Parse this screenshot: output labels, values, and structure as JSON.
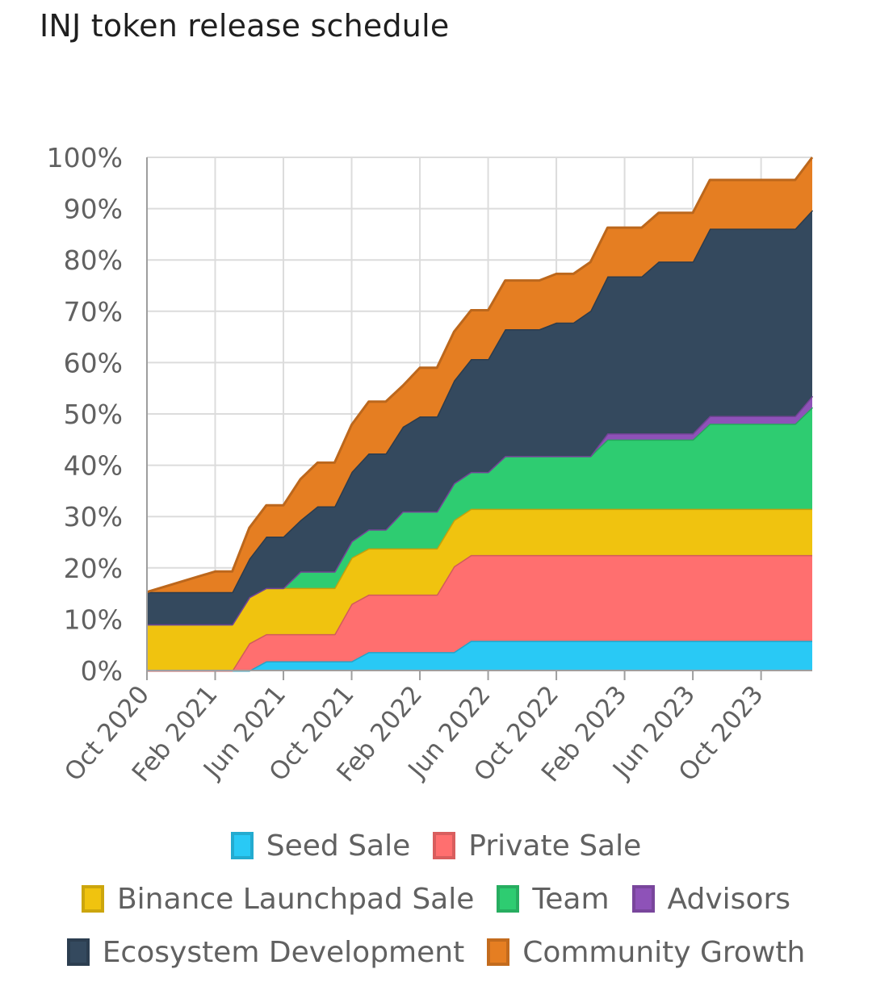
{
  "title": "INJ token release schedule",
  "chart_data": {
    "type": "area",
    "stacked": true,
    "x": [
      "2020-10",
      "2020-11",
      "2020-12",
      "2021-01",
      "2021-02",
      "2021-03",
      "2021-04",
      "2021-05",
      "2021-06",
      "2021-07",
      "2021-08",
      "2021-09",
      "2021-10",
      "2021-11",
      "2021-12",
      "2022-01",
      "2022-02",
      "2022-03",
      "2022-04",
      "2022-05",
      "2022-06",
      "2022-07",
      "2022-08",
      "2022-09",
      "2022-10",
      "2022-11",
      "2022-12",
      "2023-01",
      "2023-02",
      "2023-03",
      "2023-04",
      "2023-05",
      "2023-06",
      "2023-07",
      "2023-08",
      "2023-09",
      "2023-10",
      "2023-11",
      "2023-12",
      "2024-01"
    ],
    "x_tick_labels": [
      "Oct 2020",
      "Feb 2021",
      "Jun 2021",
      "Oct 2021",
      "Feb 2022",
      "Jun 2022",
      "Oct 2022",
      "Feb 2023",
      "Jun 2023",
      "Oct 2023"
    ],
    "y_tick_labels": [
      "0%",
      "10%",
      "20%",
      "30%",
      "40%",
      "50%",
      "60%",
      "70%",
      "80%",
      "90%",
      "100%"
    ],
    "ylim": [
      0,
      100
    ],
    "grid": true,
    "legend_position": "bottom",
    "series": [
      {
        "name": "Seed Sale",
        "color": "#29c9f5",
        "values": [
          0,
          0,
          0,
          0,
          0,
          0,
          0,
          1.8,
          1.8,
          1.8,
          1.8,
          1.8,
          1.8,
          3.6,
          3.6,
          3.6,
          3.6,
          3.6,
          3.6,
          5.8,
          5.8,
          5.8,
          5.8,
          5.8,
          5.8,
          5.8,
          5.8,
          5.8,
          5.8,
          5.8,
          5.8,
          5.8,
          5.8,
          5.8,
          5.8,
          5.8,
          5.8,
          5.8,
          5.8,
          5.8
        ]
      },
      {
        "name": "Private Sale",
        "color": "#ff6f6f",
        "values": [
          0,
          0,
          0,
          0,
          0,
          0,
          5.3,
          5.3,
          5.3,
          5.3,
          5.3,
          5.3,
          11.2,
          11.2,
          11.2,
          11.2,
          11.2,
          11.2,
          16.7,
          16.7,
          16.7,
          16.7,
          16.7,
          16.7,
          16.7,
          16.7,
          16.7,
          16.7,
          16.7,
          16.7,
          16.7,
          16.7,
          16.7,
          16.7,
          16.7,
          16.7,
          16.7,
          16.7,
          16.7,
          16.7
        ]
      },
      {
        "name": "Binance Launchpad Sale",
        "color": "#f0c30f",
        "values": [
          9,
          9,
          9,
          9,
          9,
          9,
          9,
          9,
          9,
          9,
          9,
          9,
          9,
          9,
          9,
          9,
          9,
          9,
          9,
          9,
          9,
          9,
          9,
          9,
          9,
          9,
          9,
          9,
          9,
          9,
          9,
          9,
          9,
          9,
          9,
          9,
          9,
          9,
          9,
          9
        ]
      },
      {
        "name": "Team",
        "color": "#2ecc71",
        "values": [
          0,
          0,
          0,
          0,
          0,
          0,
          0,
          0,
          0,
          3.2,
          3.2,
          3.2,
          3.2,
          3.7,
          3.7,
          7.2,
          7.2,
          7.2,
          7.2,
          7.2,
          7.2,
          10.3,
          10.3,
          10.3,
          10.3,
          10.3,
          10.3,
          13.5,
          13.5,
          13.5,
          13.5,
          13.5,
          13.5,
          16.6,
          16.6,
          16.6,
          16.6,
          16.6,
          16.6,
          19.8
        ]
      },
      {
        "name": "Advisors",
        "color": "#8e52b8",
        "values": [
          0,
          0,
          0,
          0,
          0,
          0,
          0,
          0,
          0,
          0,
          0,
          0,
          0,
          0,
          0,
          0,
          0,
          0,
          0,
          0,
          0,
          0,
          0,
          0,
          0,
          0,
          0,
          1.2,
          1.2,
          1.2,
          1.2,
          1.2,
          1.2,
          1.5,
          1.5,
          1.5,
          1.5,
          1.5,
          1.5,
          2.2
        ]
      },
      {
        "name": "Ecosystem Development",
        "color": "#34495e",
        "values": [
          6.3,
          6.3,
          6.3,
          6.3,
          6.3,
          6.3,
          7.5,
          10,
          10,
          10,
          12.7,
          12.7,
          13.5,
          14.8,
          14.8,
          16.5,
          18.5,
          18.5,
          20,
          22,
          22,
          24.7,
          24.7,
          24.7,
          26,
          26,
          28.3,
          30.6,
          30.6,
          30.6,
          33.5,
          33.5,
          33.5,
          36.5,
          36.5,
          36.5,
          36.5,
          36.5,
          36.5,
          36.2
        ]
      },
      {
        "name": "Community Growth",
        "color": "#e57e22",
        "values": [
          0,
          1,
          2,
          3,
          4,
          4,
          6,
          6.1,
          6.1,
          8,
          8.5,
          8.5,
          9.2,
          10.1,
          10.1,
          8,
          9.5,
          9.5,
          9.5,
          9.5,
          9.5,
          9.5,
          9.5,
          9.5,
          9.5,
          9.5,
          9.5,
          9.5,
          9.5,
          9.5,
          9.5,
          9.5,
          9.5,
          9.5,
          9.5,
          9.5,
          9.5,
          9.5,
          9.5,
          10.3
        ]
      }
    ]
  }
}
